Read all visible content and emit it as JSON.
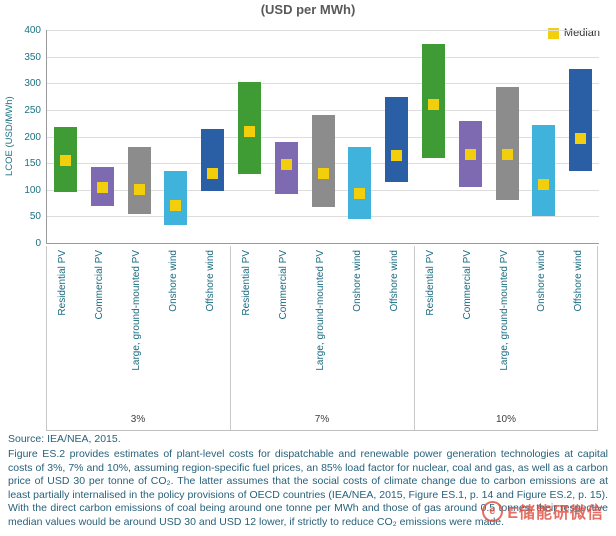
{
  "chart": {
    "title": "(USD per MWh)",
    "y_axis_label": "LCOE (USD/MWh)",
    "legend": {
      "median_label": "Median",
      "median_color": "#f2ce0d"
    }
  },
  "chart_data": {
    "type": "range-bar",
    "title": "(USD per MWh)",
    "ylabel": "LCOE (USD/MWh)",
    "ylim": [
      0,
      400
    ],
    "yticks": [
      0,
      50,
      100,
      150,
      200,
      250,
      300,
      350,
      400
    ],
    "grid": true,
    "legend": [
      "Median"
    ],
    "legend_position": "top-right",
    "median_color": "#f2ce0d",
    "series_colors": {
      "Residential PV": "#3f9c35",
      "Commercial PV": "#7d6ab0",
      "Large, ground-mounted PV": "#8c8c8c",
      "Onshore wind": "#3fb3dc",
      "Offshore wind": "#2a5fa5"
    },
    "groups": [
      {
        "label": "3%",
        "bars": [
          {
            "category": "Residential PV",
            "low": 96,
            "high": 218,
            "median": 155
          },
          {
            "category": "Commercial PV",
            "low": 70,
            "high": 142,
            "median": 105
          },
          {
            "category": "Large, ground-mounted PV",
            "low": 55,
            "high": 180,
            "median": 100
          },
          {
            "category": "Onshore wind",
            "low": 33,
            "high": 135,
            "median": 70
          },
          {
            "category": "Offshore wind",
            "low": 98,
            "high": 214,
            "median": 130
          }
        ]
      },
      {
        "label": "7%",
        "bars": [
          {
            "category": "Residential PV",
            "low": 130,
            "high": 303,
            "median": 210
          },
          {
            "category": "Commercial PV",
            "low": 92,
            "high": 190,
            "median": 148
          },
          {
            "category": "Large, ground-mounted PV",
            "low": 68,
            "high": 241,
            "median": 130
          },
          {
            "category": "Onshore wind",
            "low": 45,
            "high": 181,
            "median": 93
          },
          {
            "category": "Offshore wind",
            "low": 115,
            "high": 275,
            "median": 165
          }
        ]
      },
      {
        "label": "10%",
        "bars": [
          {
            "category": "Residential PV",
            "low": 160,
            "high": 374,
            "median": 260
          },
          {
            "category": "Commercial PV",
            "low": 105,
            "high": 230,
            "median": 167
          },
          {
            "category": "Large, ground-mounted PV",
            "low": 80,
            "high": 293,
            "median": 167
          },
          {
            "category": "Onshore wind",
            "low": 50,
            "high": 222,
            "median": 110
          },
          {
            "category": "Offshore wind",
            "low": 135,
            "high": 327,
            "median": 197
          }
        ]
      }
    ]
  },
  "source": "Source: IEA/NEA, 2015.",
  "caption": "Figure ES.2 provides estimates of plant-level costs for dispatchable and renewable power generation technologies at capital costs of 3%, 7% and 10%, assuming region-specific fuel prices, an 85% load factor for nuclear, coal and gas, as well as a carbon price of USD 30 per tonne of CO₂. The latter assumes that the social costs of climate change due to carbon emissions are at least partially internalised in the policy provisions of OECD countries (IEA/NEA, 2015, Figure ES.1, p. 14 and Figure ES.2, p. 15). With the direct carbon emissions of coal being around one tonne per MWh and those of gas around 0.5 tonnes, their respective median values would be around USD 30 and USD 12 lower, if strictly to reduce CO₂ emissions were made.",
  "watermark": {
    "text": "E储能研微信",
    "color": "#e24a3b"
  }
}
